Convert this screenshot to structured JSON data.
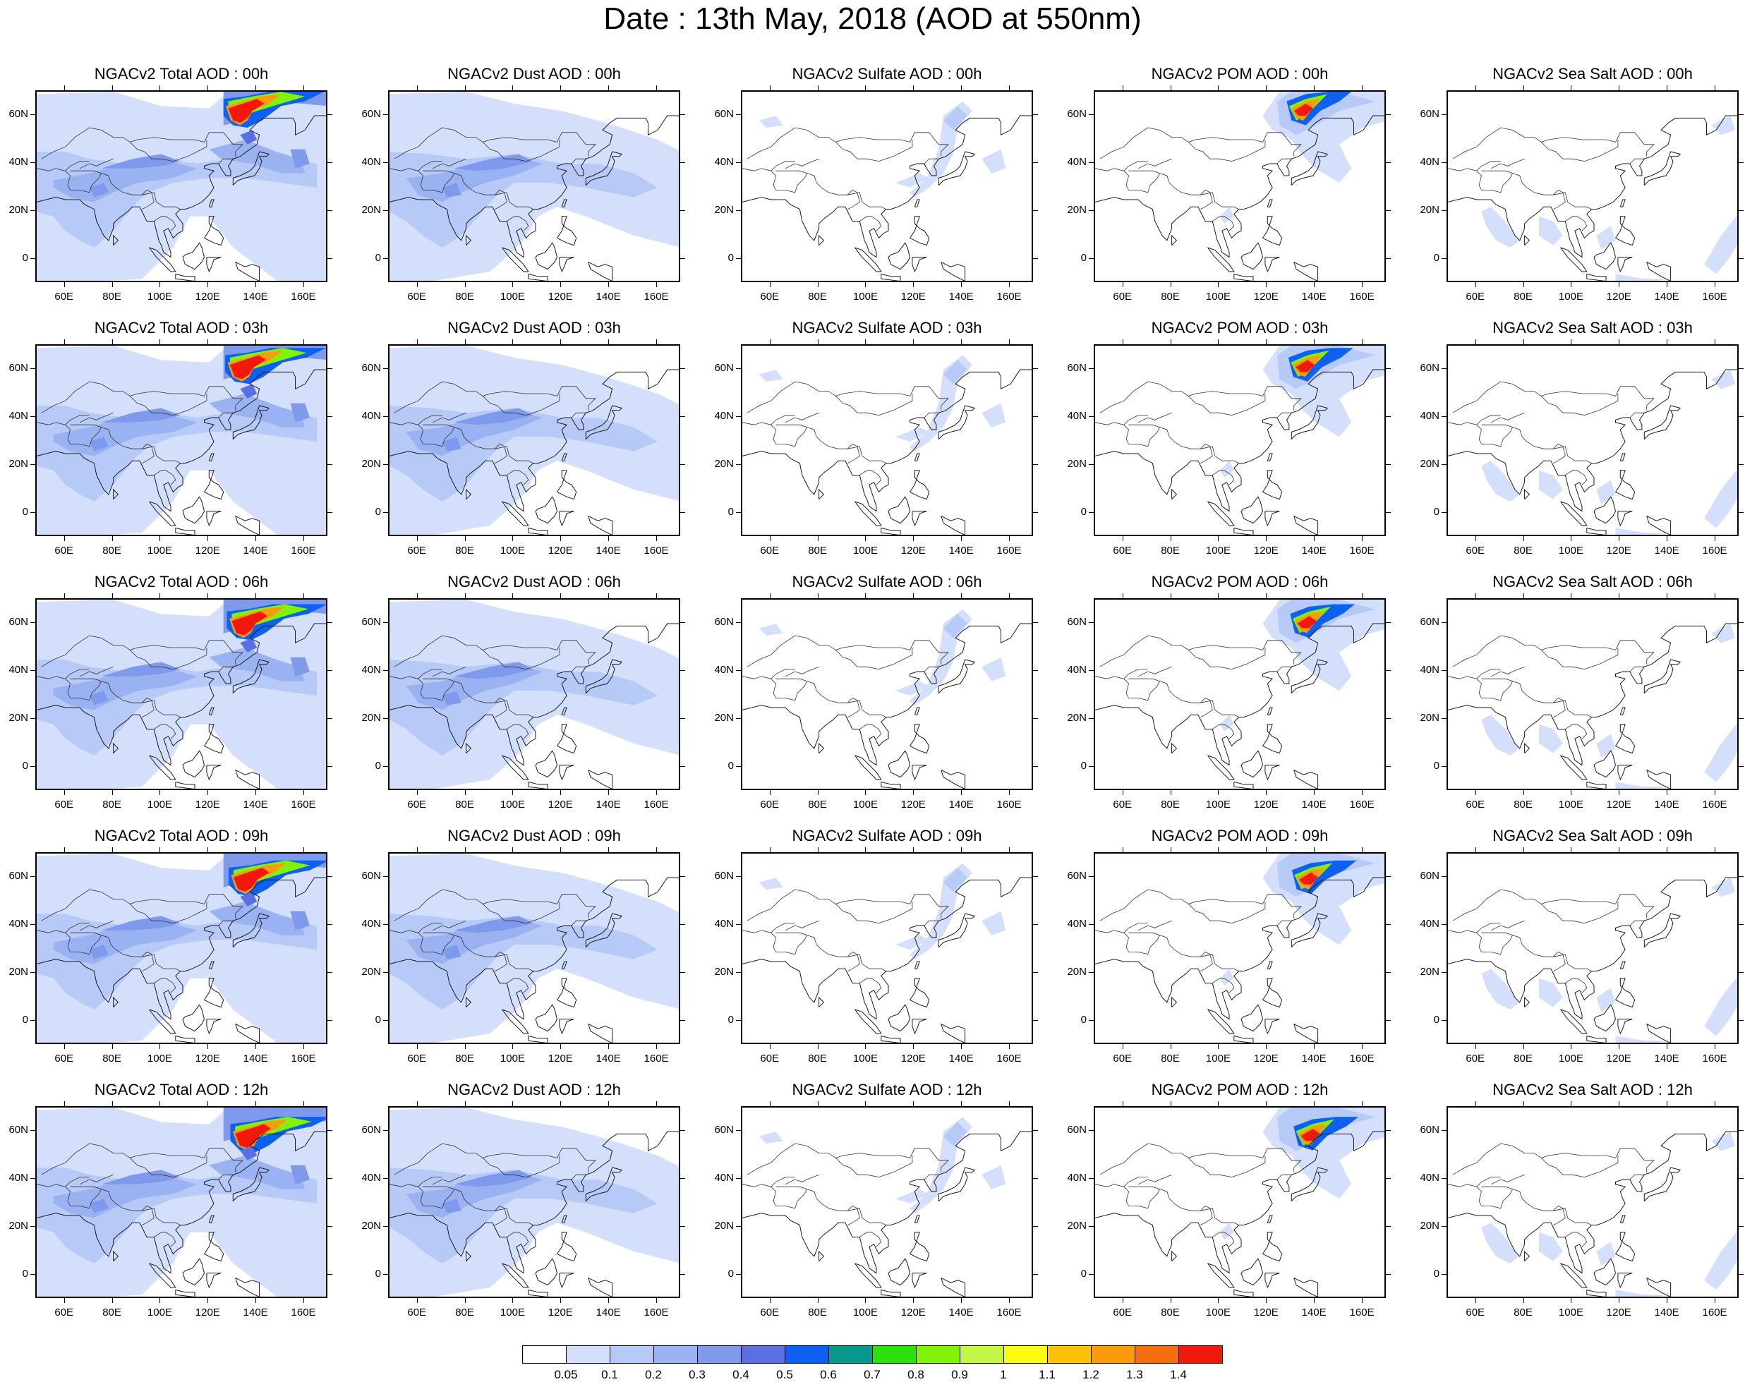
{
  "title": "Date : 13th May, 2018 (AOD at 550nm)",
  "map": {
    "lon_range": [
      48,
      170
    ],
    "lat_range": [
      -10,
      70
    ],
    "lon_ticks": [
      "60E",
      "80E",
      "100E",
      "120E",
      "140E",
      "160E"
    ],
    "lon_tick_values": [
      60,
      80,
      100,
      120,
      140,
      160
    ],
    "lat_ticks": [
      "60N",
      "40N",
      "20N",
      "0"
    ],
    "lat_tick_values": [
      60,
      40,
      20,
      0
    ]
  },
  "panel_titles": [
    [
      "NGACv2 Total AOD : 00h",
      "NGACv2 Dust AOD : 00h",
      "NGACv2 Sulfate AOD : 00h",
      "NGACv2 POM AOD : 00h",
      "NGACv2 Sea Salt AOD : 00h"
    ],
    [
      "NGACv2 Total AOD : 03h",
      "NGACv2 Dust AOD : 03h",
      "NGACv2 Sulfate AOD : 03h",
      "NGACv2 POM AOD : 03h",
      "NGACv2 Sea Salt AOD : 03h"
    ],
    [
      "NGACv2 Total AOD : 06h",
      "NGACv2 Dust AOD : 06h",
      "NGACv2 Sulfate AOD : 06h",
      "NGACv2 POM AOD : 06h",
      "NGACv2 Sea Salt AOD : 06h"
    ],
    [
      "NGACv2 Total AOD : 09h",
      "NGACv2 Dust AOD : 09h",
      "NGACv2 Sulfate AOD : 09h",
      "NGACv2 POM AOD : 09h",
      "NGACv2 Sea Salt  AOD : 09h"
    ],
    [
      "NGACv2 Total AOD  : 12h",
      "NGACv2 Dust AOD : 12h",
      "NGACv2 Sulfate AOD : 12h",
      "NGACv2 POM  AOD : 12h",
      "NGACv2 Sea Salt  AOD : 12h"
    ]
  ],
  "colorbar": {
    "labels": [
      "0.05",
      "0.1",
      "0.2",
      "0.3",
      "0.4",
      "0.5",
      "0.6",
      "0.7",
      "0.8",
      "0.9",
      "1",
      "1.1",
      "1.2",
      "1.3",
      "1.4"
    ],
    "colors": [
      "#ffffff",
      "#d4dffb",
      "#b7c9f7",
      "#9bb2f2",
      "#7f99ec",
      "#5a6ee6",
      "#0d60f0",
      "#0a978c",
      "#2ee00b",
      "#82f20c",
      "#c5f548",
      "#fafb10",
      "#fbc10a",
      "#fb9b0c",
      "#f86d0d",
      "#f0190b"
    ]
  }
}
